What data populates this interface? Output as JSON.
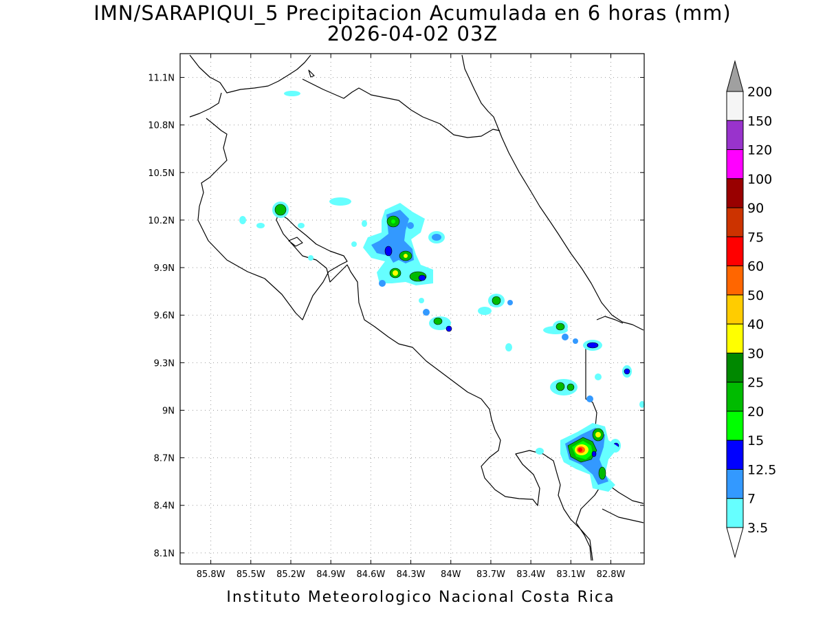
{
  "title_line1": "IMN/SARAPIQUI_5 Precipitacion Acumulada en 6 horas (mm)",
  "title_line2": "2026-04-02 03Z",
  "credit": "Instituto Meteorologico Nacional Costa Rica",
  "map": {
    "lon_range": [
      -86.03,
      -82.55
    ],
    "lat_range": [
      8.03,
      11.25
    ],
    "grid": "dotted",
    "lon_ticks": [
      "85.8W",
      "85.5W",
      "85.2W",
      "84.9W",
      "84.6W",
      "84.3W",
      "84W",
      "83.7W",
      "83.4W",
      "83.1W",
      "82.8W"
    ],
    "lat_ticks": [
      "11.1N",
      "10.8N",
      "10.5N",
      "10.2N",
      "9.9N",
      "9.6N",
      "9.3N",
      "9N",
      "8.7N",
      "8.4N",
      "8.1N"
    ]
  },
  "colorbar": {
    "labels": [
      "200",
      "150",
      "120",
      "100",
      "90",
      "75",
      "60",
      "50",
      "40",
      "30",
      "25",
      "20",
      "15",
      "12.5",
      "7",
      "3.5"
    ],
    "colors": [
      "#f5f5f5",
      "#9933cc",
      "#ff00ff",
      "#990000",
      "#cc3300",
      "#ff0000",
      "#ff6600",
      "#ffcc00",
      "#ffff00",
      "#008800",
      "#00bb00",
      "#00ff00",
      "#0000ff",
      "#3399ff",
      "#66ffff"
    ],
    "over_color": "#a0a0a0",
    "under_color": "#ffffff"
  }
}
